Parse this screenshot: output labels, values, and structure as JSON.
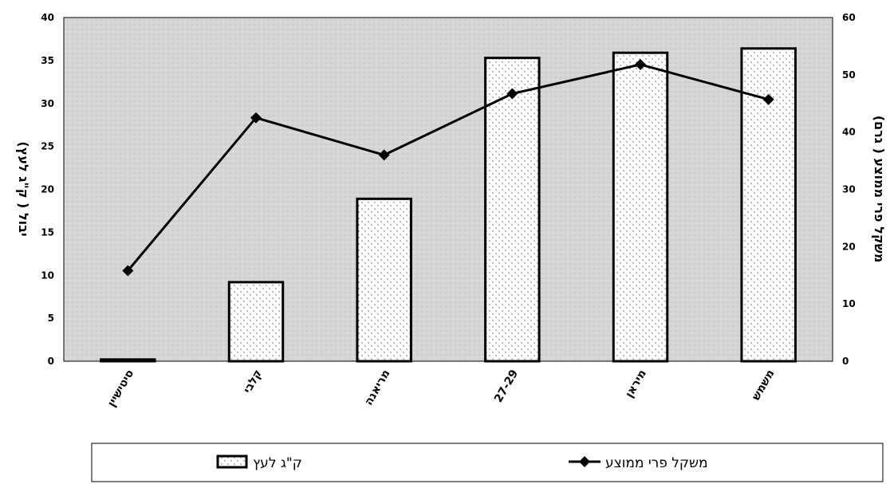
{
  "chart_data": {
    "type": "bar",
    "categories": [
      "סיטישיין",
      "קלבי",
      "מריאנה",
      "27-29",
      "מיראן",
      "משמש"
    ],
    "series": [
      {
        "name": "ק\"ג לעץ",
        "type": "bar",
        "axis": "left",
        "values": [
          0.2,
          9.2,
          18.9,
          35.3,
          35.9,
          36.4
        ]
      },
      {
        "name": "משקל פרי ממוצע",
        "type": "line",
        "axis": "right",
        "values": [
          15.8,
          42.5,
          36.0,
          46.7,
          51.8,
          45.7
        ]
      }
    ],
    "ylabel": "יבול ( ק\"ג לעץ)",
    "y2label": "משקל פרי ממוצע ( גרם)",
    "ylim": [
      0,
      40
    ],
    "y2lim": [
      0,
      60
    ],
    "yticks": [
      "0",
      "5",
      "10",
      "15",
      "20",
      "25",
      "30",
      "35",
      "40"
    ],
    "y2ticks": [
      "0",
      "10",
      "20",
      "30",
      "40",
      "50",
      "60"
    ],
    "legend_position": "bottom",
    "grid": false,
    "colors": {
      "plot_bg": "#d4d4d4",
      "bar_fill": "#ffffff",
      "line": "#000000"
    }
  },
  "legend": {
    "bar_label": "ק\"ג לעץ",
    "line_label": "משקל פרי ממוצע"
  }
}
